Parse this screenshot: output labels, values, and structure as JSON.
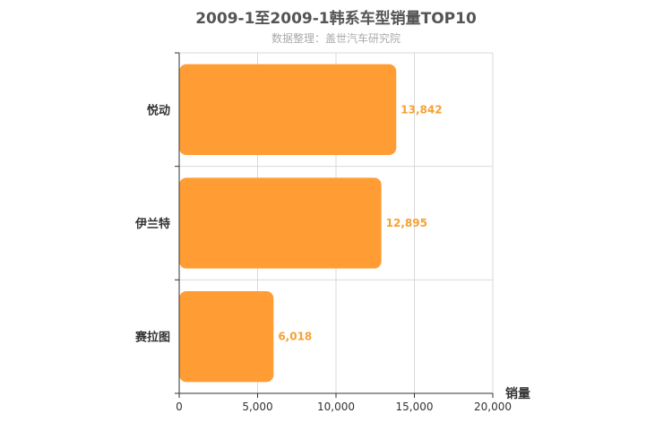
{
  "title": "2009-1至2009-1韩系车型销量TOP10",
  "subtitle": "数据整理：盖世汽车研究院",
  "colors": {
    "bar": "#ff9c33",
    "label": "#f5a133",
    "grid": "#d9d9d9",
    "axis": "#333333"
  },
  "chart_data": {
    "type": "bar",
    "orientation": "horizontal",
    "categories": [
      "悦动",
      "伊兰特",
      "赛拉图"
    ],
    "values": [
      13842,
      12895,
      6018
    ],
    "value_labels": [
      "13,842",
      "12,895",
      "6,018"
    ],
    "xlabel": "销量",
    "ylabel": "",
    "xlim": [
      0,
      20000
    ],
    "xticks": [
      0,
      5000,
      10000,
      15000,
      20000
    ],
    "xtick_labels": [
      "0",
      "5,000",
      "10,000",
      "15,000",
      "20,000"
    ],
    "grid": true
  }
}
